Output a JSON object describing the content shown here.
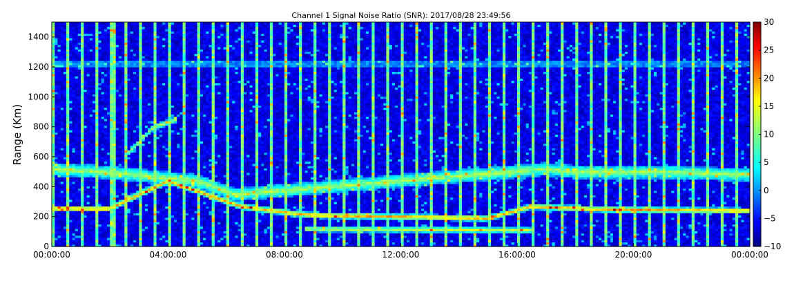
{
  "chart_data": {
    "type": "heatmap",
    "title": "Channel 1 Signal Noise Ratio (SNR): 2017/08/28 23:49:56",
    "xlabel": "",
    "ylabel": "Range (Km)",
    "x_ticks": [
      "00:00:00",
      "04:00:00",
      "08:00:00",
      "12:00:00",
      "16:00:00",
      "20:00:00",
      "00:00:00"
    ],
    "x_range_hours": [
      0,
      24
    ],
    "ylim": [
      0,
      1500
    ],
    "y_ticks": [
      "0",
      "200",
      "400",
      "600",
      "800",
      "1000",
      "1200",
      "1400"
    ],
    "colorbar": {
      "colormap": "jet",
      "min": -10,
      "max": 30,
      "ticks": [
        "30",
        "25",
        "20",
        "15",
        "10",
        "5",
        "0",
        "−5",
        "−10"
      ]
    },
    "grid": false,
    "features": {
      "stripe_period_hours": 0.5,
      "stripe_width_hours": 0.15,
      "echo_layers": [
        {
          "name_hint": "low-layer",
          "points": [
            [
              0,
              255
            ],
            [
              2,
              255
            ],
            [
              4,
              440
            ],
            [
              6.5,
              270
            ],
            [
              8,
              230
            ],
            [
              9,
              210
            ],
            [
              12,
              200
            ],
            [
              15,
              190
            ],
            [
              16.5,
              270
            ],
            [
              17.5,
              260
            ],
            [
              19,
              250
            ],
            [
              24,
              240
            ]
          ]
        },
        {
          "name_hint": "mid-layer",
          "points": [
            [
              0,
              520
            ],
            [
              1.8,
              500
            ],
            [
              5,
              440
            ],
            [
              6.3,
              350
            ],
            [
              17,
              520
            ],
            [
              18,
              500
            ],
            [
              21,
              500
            ],
            [
              24,
              480
            ]
          ]
        },
        {
          "name_hint": "ramp",
          "points": [
            [
              2,
              250
            ],
            [
              3,
              360
            ],
            [
              4,
              430
            ]
          ]
        },
        {
          "name_hint": "upper-ramp",
          "points": [
            [
              2.5,
              600
            ],
            [
              3.5,
              800
            ],
            [
              4.3,
              850
            ]
          ]
        },
        {
          "name_hint": "ground",
          "points": [
            [
              8.7,
              120
            ],
            [
              16.5,
              110
            ]
          ]
        }
      ]
    }
  }
}
